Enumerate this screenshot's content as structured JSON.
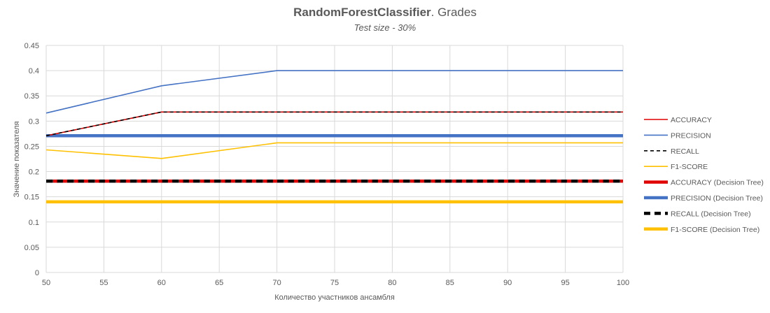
{
  "chart_data": {
    "type": "line",
    "title_bold": "RandomForestClassifier",
    "title_rest": ". Grades",
    "subtitle": "Test size - 30%",
    "xlabel": "Количество участников ансамбля",
    "ylabel": "Значение показателя",
    "xlim": [
      50,
      100
    ],
    "ylim": [
      0,
      0.45
    ],
    "xticks": [
      50,
      55,
      60,
      65,
      70,
      75,
      80,
      85,
      90,
      95,
      100
    ],
    "yticks": [
      "0",
      "0.05",
      "0.1",
      "0.15",
      "0.2",
      "0.25",
      "0.3",
      "0.35",
      "0.4",
      "0.45"
    ],
    "grid": "vertical and horizontal",
    "legend_position": "right",
    "x": [
      50,
      60,
      70,
      80,
      90,
      100
    ],
    "series": [
      {
        "name": "ACCURACY",
        "color": "#e00000",
        "style": "solid",
        "weight": "thin",
        "values": [
          0.271,
          0.318,
          0.318,
          0.318,
          0.318,
          0.318
        ]
      },
      {
        "name": "PRECISION",
        "color": "#4472c4",
        "style": "solid",
        "weight": "thin",
        "values": [
          0.316,
          0.37,
          0.4,
          0.4,
          0.4,
          0.4
        ]
      },
      {
        "name": "RECALL",
        "color": "#000000",
        "style": "dashed",
        "weight": "thin",
        "values": [
          0.271,
          0.318,
          0.318,
          0.318,
          0.318,
          0.318
        ]
      },
      {
        "name": "F1-SCORE",
        "color": "#ffc000",
        "style": "solid",
        "weight": "thin",
        "values": [
          0.243,
          0.226,
          0.257,
          0.257,
          0.257,
          0.257
        ]
      },
      {
        "name": "ACCURACY (Decision Tree)",
        "color": "#e00000",
        "style": "solid",
        "weight": "thick",
        "values": [
          0.181,
          0.181,
          0.181,
          0.181,
          0.181,
          0.181
        ]
      },
      {
        "name": "PRECISION (Decision Tree)",
        "color": "#4472c4",
        "style": "solid",
        "weight": "thick",
        "values": [
          0.271,
          0.271,
          0.271,
          0.271,
          0.271,
          0.271
        ]
      },
      {
        "name": "RECALL (Decision Tree)",
        "color": "#000000",
        "style": "dashed",
        "weight": "thick",
        "values": [
          0.181,
          0.181,
          0.181,
          0.181,
          0.181,
          0.181
        ]
      },
      {
        "name": "F1-SCORE (Decision Tree)",
        "color": "#ffc000",
        "style": "solid",
        "weight": "thick",
        "values": [
          0.14,
          0.14,
          0.14,
          0.14,
          0.14,
          0.14
        ]
      }
    ]
  }
}
